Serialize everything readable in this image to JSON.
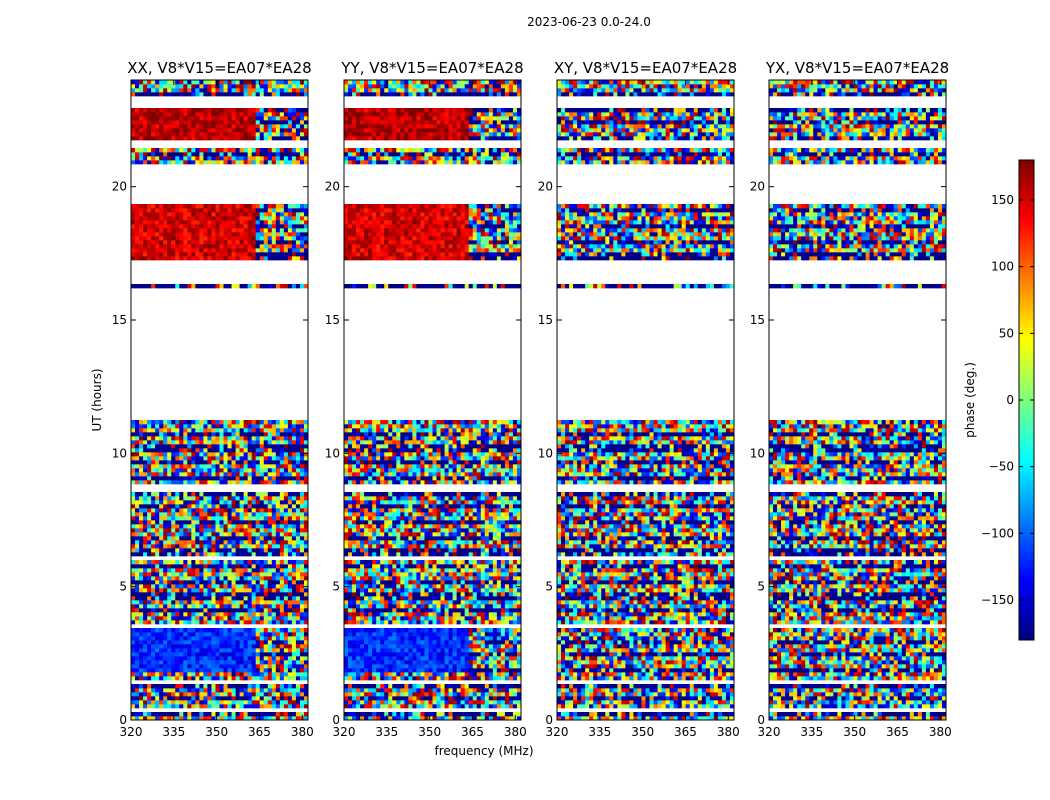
{
  "chart_data": {
    "type": "heatmap",
    "suptitle": "2023-06-23 0.0-24.0",
    "xlabel": "frequency (MHz)",
    "ylabel": "UT (hours)",
    "xlim": [
      320,
      382
    ],
    "ylim": [
      0,
      24
    ],
    "xticks": [
      320,
      335,
      350,
      365,
      380
    ],
    "yticks": [
      0,
      5,
      10,
      15,
      20
    ],
    "panels": [
      {
        "title": "XX, V8*V15=EA07*EA28",
        "pol": "XX"
      },
      {
        "title": "YY, V8*V15=EA07*EA28",
        "pol": "YY"
      },
      {
        "title": "XY, V8*V15=EA07*EA28",
        "pol": "XY"
      },
      {
        "title": "YX, V8*V15=EA07*EA28",
        "pol": "YX"
      }
    ],
    "data_gaps_hours": [
      [
        0.35,
        0.45
      ],
      [
        1.4,
        1.55
      ],
      [
        3.5,
        3.65
      ],
      [
        4.6,
        4.7
      ],
      [
        6.0,
        6.15
      ],
      [
        8.6,
        8.8
      ],
      [
        11.2,
        16.2
      ],
      [
        16.4,
        17.2
      ],
      [
        19.4,
        20.8
      ],
      [
        21.5,
        21.7
      ],
      [
        22.9,
        23.4
      ]
    ],
    "coherent_blocks": [
      {
        "t0": 1.8,
        "t1": 3.5,
        "phase": -120,
        "pols": [
          "XX",
          "YY"
        ],
        "f1": 363
      },
      {
        "t0": 17.3,
        "t1": 19.3,
        "phase": 150,
        "pols": [
          "XX",
          "YY"
        ],
        "f1": 363
      },
      {
        "t0": 21.7,
        "t1": 22.9,
        "phase": 160,
        "pols": [
          "XX",
          "YY"
        ],
        "f1": 363
      }
    ],
    "colorbar": {
      "label": "phase (deg.)",
      "min": -180,
      "max": 180,
      "ticks": [
        150,
        100,
        50,
        0,
        -50,
        -100,
        -150
      ],
      "tick_labels": [
        "150",
        "100",
        "50",
        "0",
        "−50",
        "−100",
        "−150"
      ],
      "colormap": [
        "#00007f",
        "#0000ff",
        "#007fff",
        "#00ffff",
        "#7fff7f",
        "#ffff00",
        "#ff7f00",
        "#ff0000",
        "#7f0000"
      ]
    }
  }
}
